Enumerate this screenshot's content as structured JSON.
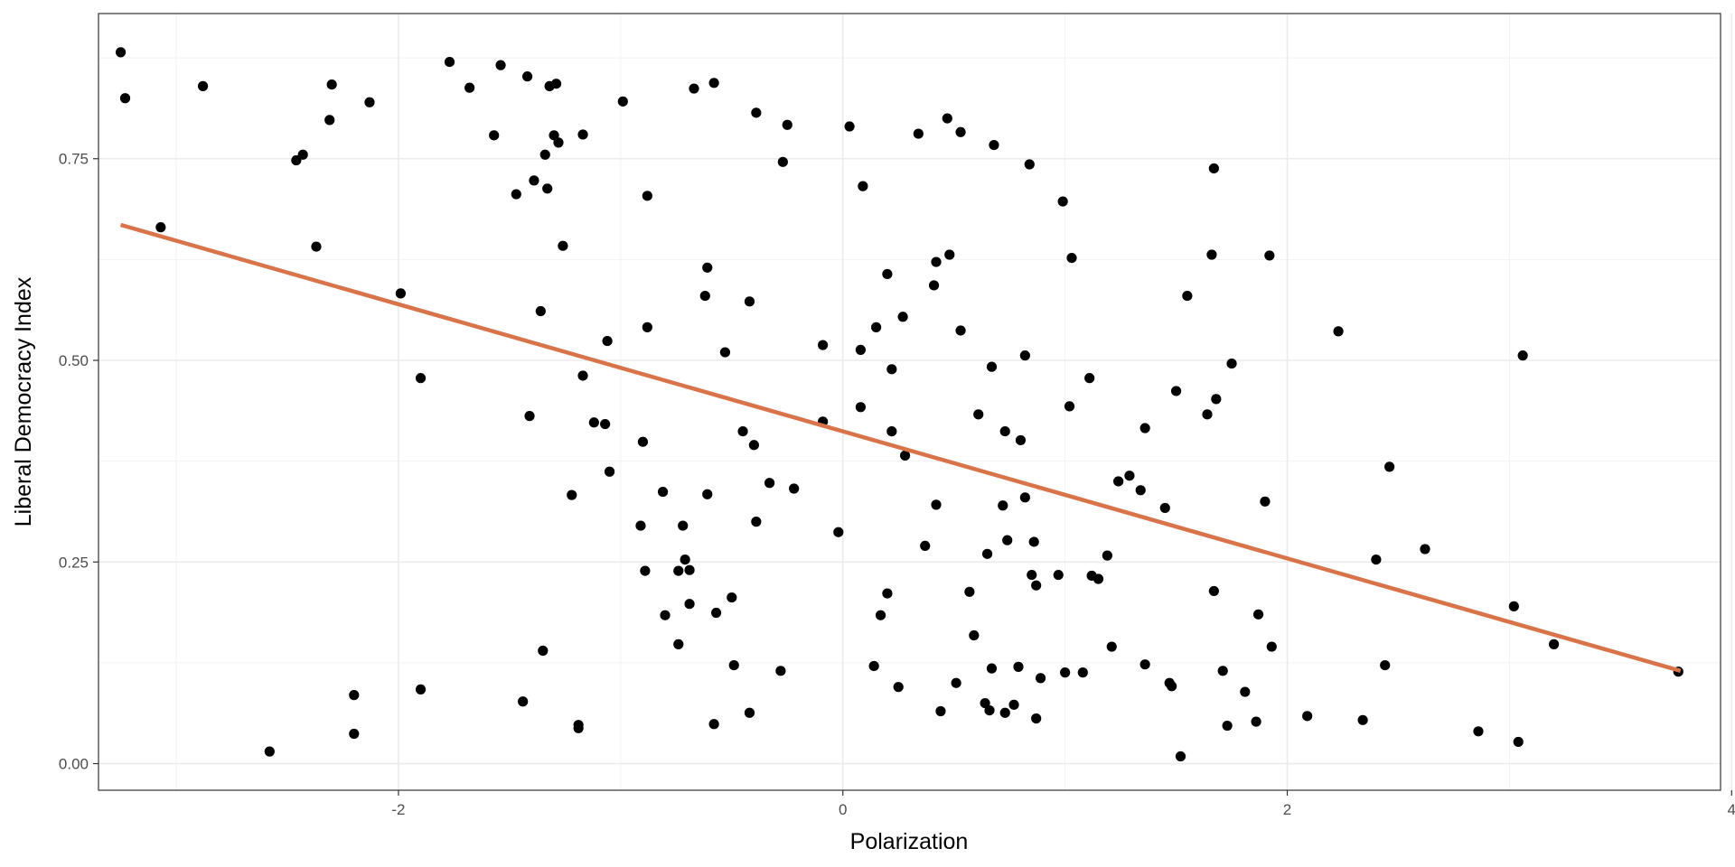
{
  "chart_data": {
    "type": "scatter",
    "title": "",
    "xlabel": "Polarization",
    "ylabel": "Liberal Democracy Index",
    "xlim": [
      -3.35,
      3.95
    ],
    "ylim": [
      -0.033,
      0.93
    ],
    "x_ticks": [
      -2,
      0,
      2,
      4
    ],
    "x_tick_labels": [
      "-2",
      "0",
      "2",
      "4"
    ],
    "y_ticks": [
      0.0,
      0.25,
      0.5,
      0.75
    ],
    "y_tick_labels": [
      "0.00",
      "0.25",
      "0.50",
      "0.75"
    ],
    "grid": true,
    "theme": "bw",
    "point_color": "#000000",
    "trend_color": "#D9744A",
    "trend_line": {
      "x": [
        -3.25,
        3.77
      ],
      "y": [
        0.668,
        0.115
      ]
    },
    "points": [
      [
        -3.25,
        0.882
      ],
      [
        -3.23,
        0.825
      ],
      [
        -3.07,
        0.665
      ],
      [
        -2.88,
        0.84
      ],
      [
        -2.58,
        0.015
      ],
      [
        -2.46,
        0.748
      ],
      [
        -2.43,
        0.755
      ],
      [
        -2.37,
        0.641
      ],
      [
        -2.31,
        0.798
      ],
      [
        -2.3,
        0.842
      ],
      [
        -2.2,
        0.085
      ],
      [
        -2.2,
        0.037
      ],
      [
        -2.13,
        0.82
      ],
      [
        -1.99,
        0.583
      ],
      [
        -1.9,
        0.478
      ],
      [
        -1.9,
        0.092
      ],
      [
        -1.77,
        0.87
      ],
      [
        -1.68,
        0.838
      ],
      [
        -1.57,
        0.779
      ],
      [
        -1.54,
        0.866
      ],
      [
        -1.47,
        0.706
      ],
      [
        -1.44,
        0.077
      ],
      [
        -1.42,
        0.852
      ],
      [
        -1.41,
        0.431
      ],
      [
        -1.39,
        0.723
      ],
      [
        -1.36,
        0.561
      ],
      [
        -1.35,
        0.14
      ],
      [
        -1.34,
        0.755
      ],
      [
        -1.33,
        0.713
      ],
      [
        -1.32,
        0.84
      ],
      [
        -1.3,
        0.779
      ],
      [
        -1.29,
        0.843
      ],
      [
        -1.28,
        0.77
      ],
      [
        -1.26,
        0.642
      ],
      [
        -1.22,
        0.333
      ],
      [
        -1.19,
        0.048
      ],
      [
        -1.19,
        0.044
      ],
      [
        -1.17,
        0.481
      ],
      [
        -1.17,
        0.78
      ],
      [
        -1.12,
        0.423
      ],
      [
        -1.07,
        0.421
      ],
      [
        -1.06,
        0.524
      ],
      [
        -1.05,
        0.362
      ],
      [
        -0.99,
        0.821
      ],
      [
        -0.91,
        0.295
      ],
      [
        -0.9,
        0.399
      ],
      [
        -0.89,
        0.239
      ],
      [
        -0.88,
        0.541
      ],
      [
        -0.88,
        0.704
      ],
      [
        -0.81,
        0.337
      ],
      [
        -0.8,
        0.184
      ],
      [
        -0.74,
        0.239
      ],
      [
        -0.74,
        0.148
      ],
      [
        -0.72,
        0.295
      ],
      [
        -0.71,
        0.253
      ],
      [
        -0.69,
        0.24
      ],
      [
        -0.69,
        0.198
      ],
      [
        -0.67,
        0.837
      ],
      [
        -0.62,
        0.58
      ],
      [
        -0.61,
        0.334
      ],
      [
        -0.61,
        0.615
      ],
      [
        -0.58,
        0.844
      ],
      [
        -0.58,
        0.049
      ],
      [
        -0.57,
        0.187
      ],
      [
        -0.53,
        0.51
      ],
      [
        -0.5,
        0.206
      ],
      [
        -0.49,
        0.122
      ],
      [
        -0.45,
        0.412
      ],
      [
        -0.42,
        0.573
      ],
      [
        -0.42,
        0.063
      ],
      [
        -0.4,
        0.395
      ],
      [
        -0.39,
        0.3
      ],
      [
        -0.39,
        0.807
      ],
      [
        -0.33,
        0.348
      ],
      [
        -0.28,
        0.115
      ],
      [
        -0.27,
        0.746
      ],
      [
        -0.25,
        0.792
      ],
      [
        -0.22,
        0.341
      ],
      [
        -0.09,
        0.519
      ],
      [
        -0.09,
        0.424
      ],
      [
        -0.02,
        0.287
      ],
      [
        0.03,
        0.79
      ],
      [
        0.08,
        0.442
      ],
      [
        0.08,
        0.513
      ],
      [
        0.09,
        0.716
      ],
      [
        0.14,
        0.121
      ],
      [
        0.15,
        0.541
      ],
      [
        0.17,
        0.184
      ],
      [
        0.2,
        0.607
      ],
      [
        0.2,
        0.211
      ],
      [
        0.22,
        0.489
      ],
      [
        0.22,
        0.412
      ],
      [
        0.25,
        0.095
      ],
      [
        0.27,
        0.554
      ],
      [
        0.28,
        0.382
      ],
      [
        0.34,
        0.781
      ],
      [
        0.37,
        0.27
      ],
      [
        0.41,
        0.593
      ],
      [
        0.42,
        0.622
      ],
      [
        0.42,
        0.321
      ],
      [
        0.44,
        0.065
      ],
      [
        0.47,
        0.8
      ],
      [
        0.48,
        0.631
      ],
      [
        0.51,
        0.1
      ],
      [
        0.53,
        0.783
      ],
      [
        0.53,
        0.537
      ],
      [
        0.57,
        0.213
      ],
      [
        0.59,
        0.159
      ],
      [
        0.61,
        0.433
      ],
      [
        0.64,
        0.075
      ],
      [
        0.65,
        0.26
      ],
      [
        0.66,
        0.066
      ],
      [
        0.67,
        0.492
      ],
      [
        0.67,
        0.118
      ],
      [
        0.68,
        0.767
      ],
      [
        0.72,
        0.32
      ],
      [
        0.73,
        0.412
      ],
      [
        0.73,
        0.063
      ],
      [
        0.74,
        0.277
      ],
      [
        0.77,
        0.073
      ],
      [
        0.79,
        0.12
      ],
      [
        0.8,
        0.401
      ],
      [
        0.82,
        0.33
      ],
      [
        0.82,
        0.506
      ],
      [
        0.84,
        0.743
      ],
      [
        0.85,
        0.234
      ],
      [
        0.86,
        0.275
      ],
      [
        0.87,
        0.056
      ],
      [
        0.87,
        0.221
      ],
      [
        0.89,
        0.106
      ],
      [
        0.97,
        0.234
      ],
      [
        0.99,
        0.697
      ],
      [
        1.0,
        0.113
      ],
      [
        1.02,
        0.443
      ],
      [
        1.03,
        0.627
      ],
      [
        1.08,
        0.113
      ],
      [
        1.11,
        0.478
      ],
      [
        1.12,
        0.233
      ],
      [
        1.15,
        0.229
      ],
      [
        1.19,
        0.258
      ],
      [
        1.21,
        0.145
      ],
      [
        1.24,
        0.35
      ],
      [
        1.29,
        0.357
      ],
      [
        1.34,
        0.339
      ],
      [
        1.36,
        0.416
      ],
      [
        1.36,
        0.123
      ],
      [
        1.45,
        0.317
      ],
      [
        1.47,
        0.1
      ],
      [
        1.48,
        0.096
      ],
      [
        1.5,
        0.462
      ],
      [
        1.52,
        0.009
      ],
      [
        1.55,
        0.58
      ],
      [
        1.64,
        0.433
      ],
      [
        1.66,
        0.631
      ],
      [
        1.67,
        0.214
      ],
      [
        1.67,
        0.738
      ],
      [
        1.68,
        0.452
      ],
      [
        1.71,
        0.115
      ],
      [
        1.73,
        0.047
      ],
      [
        1.75,
        0.496
      ],
      [
        1.81,
        0.089
      ],
      [
        1.86,
        0.052
      ],
      [
        1.87,
        0.185
      ],
      [
        1.9,
        0.325
      ],
      [
        1.92,
        0.63
      ],
      [
        1.93,
        0.145
      ],
      [
        2.09,
        0.059
      ],
      [
        2.23,
        0.536
      ],
      [
        2.34,
        0.054
      ],
      [
        2.4,
        0.253
      ],
      [
        2.44,
        0.122
      ],
      [
        2.46,
        0.368
      ],
      [
        2.62,
        0.266
      ],
      [
        2.86,
        0.04
      ],
      [
        3.02,
        0.195
      ],
      [
        3.04,
        0.027
      ],
      [
        3.06,
        0.506
      ],
      [
        3.2,
        0.148
      ],
      [
        3.76,
        0.114
      ]
    ]
  }
}
